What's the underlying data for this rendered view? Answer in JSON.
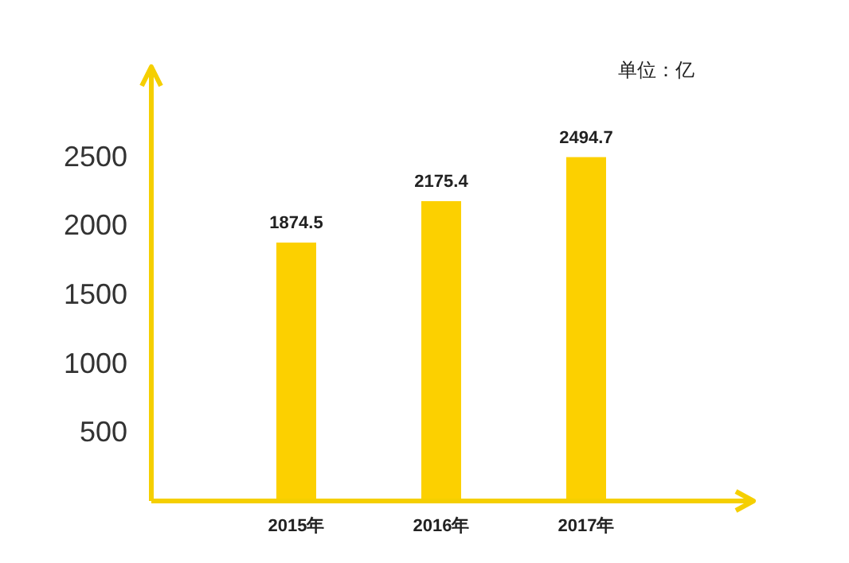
{
  "chart_data": {
    "type": "bar",
    "categories": [
      "2015年",
      "2016年",
      "2017年"
    ],
    "values": [
      1874.5,
      2175.4,
      2494.7
    ],
    "color": "#fcd000",
    "ylim": [
      0,
      3150
    ],
    "yticks": [
      500,
      1000,
      1500,
      2000,
      2500
    ],
    "data_labels": true,
    "annotations": [
      "单位：亿"
    ]
  }
}
